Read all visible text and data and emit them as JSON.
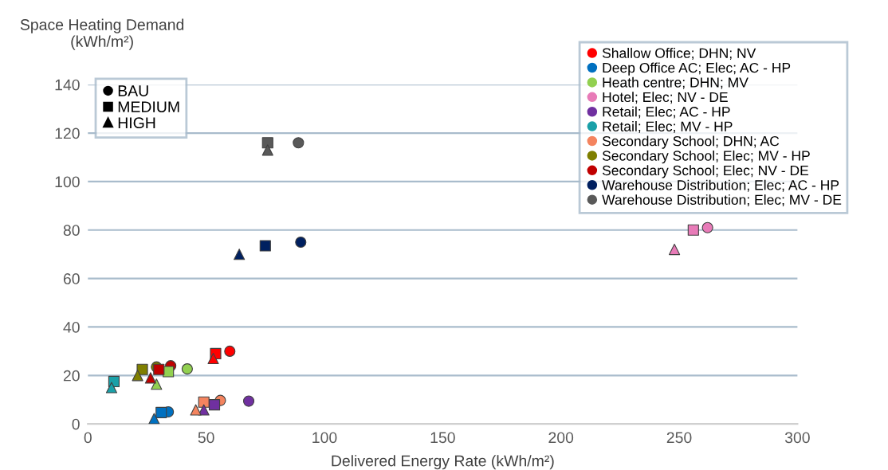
{
  "chart_data": {
    "type": "scatter",
    "xlabel": "Delivered Energy Rate (kWh/m²)",
    "ylabel": "Space Heating Demand\n(kWh/m²)",
    "xlim": [
      0,
      300
    ],
    "xticks": [
      0,
      50,
      100,
      150,
      200,
      250,
      300
    ],
    "ylim": [
      0,
      140
    ],
    "yticks": [
      0,
      20,
      40,
      60,
      80,
      100,
      120,
      140
    ],
    "grid": "y",
    "legend": "top right",
    "marker": [
      "circle",
      "square",
      "triangle"
    ],
    "annotations": [
      "BAU",
      "MEDIUM",
      "HIGH"
    ],
    "series": [
      {
        "name": "Shallow Office; DHN; NV",
        "color": "#ff0000",
        "x": [
          60,
          54,
          53
        ],
        "values": [
          30,
          29,
          27
        ]
      },
      {
        "name": "Deep Office AC; Elec; AC - HP",
        "color": "#0070c0",
        "x": [
          34,
          31,
          28
        ],
        "values": [
          5,
          4.7,
          2.2
        ]
      },
      {
        "name": "Heath centre; DHN; MV",
        "color": "#92d050",
        "x": [
          42,
          34,
          29
        ],
        "values": [
          22.7,
          21.6,
          16.4
        ]
      },
      {
        "name": "Hotel; Elec; NV - DE",
        "color": "#e87bb8",
        "x": [
          262,
          256,
          248
        ],
        "values": [
          81,
          80,
          72
        ]
      },
      {
        "name": "Retail; Elec; AC - HP",
        "color": "#7030a0",
        "x": [
          68,
          53.5,
          49
        ],
        "values": [
          9.4,
          7.9,
          5.8
        ]
      },
      {
        "name": "Retail; Elec; MV - HP",
        "color": "#1aa0a8",
        "x": [
          null,
          11,
          10
        ],
        "values": [
          null,
          17.5,
          15
        ]
      },
      {
        "name": "Secondary School; DHN; AC",
        "color": "#f4845f",
        "x": [
          56,
          49,
          45.6
        ],
        "values": [
          9.7,
          9,
          5.8
        ]
      },
      {
        "name": "Secondary School; Elec; MV - HP",
        "color": "#7f7f00",
        "x": [
          29,
          23,
          21
        ],
        "values": [
          23.5,
          22.5,
          20
        ]
      },
      {
        "name": "Secondary School; Elec; NV - DE",
        "color": "#c00000",
        "x": [
          35,
          30,
          26.5
        ],
        "values": [
          24,
          22.5,
          19
        ]
      },
      {
        "name": "Warehouse Distribution; Elec; AC - HP",
        "color": "#002060",
        "x": [
          90,
          75,
          64
        ],
        "values": [
          75,
          73.5,
          70
        ]
      },
      {
        "name": "Warehouse Distribution; Elec; MV - DE",
        "color": "#595959",
        "x": [
          89,
          76,
          76
        ],
        "values": [
          116,
          116,
          113
        ]
      }
    ]
  }
}
